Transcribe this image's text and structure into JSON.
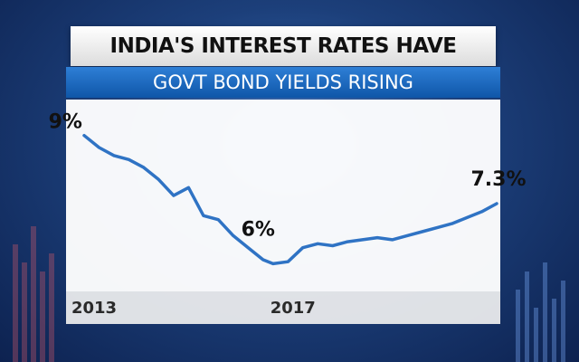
{
  "title": "INDIA'S INTEREST RATES HAVE STARTED GOING UP",
  "subtitle": "GOVT BOND YIELDS RISING",
  "colors": {
    "line": "#2f73c4",
    "subbar": "#1a66c0",
    "background": "#1c3f7a"
  },
  "chart_data": {
    "type": "line",
    "title": "INDIA'S INTEREST RATES HAVE STARTED GOING UP",
    "subtitle": "GOVT BOND YIELDS RISING",
    "xlabel": "",
    "ylabel": "",
    "xlim": [
      2013,
      2021.7
    ],
    "ylim": [
      5.2,
      9.4
    ],
    "x_ticks": [
      "2013",
      "2017"
    ],
    "grid": false,
    "legend": "none",
    "series": [
      {
        "x": [
          2013.2,
          2013.5,
          2013.8,
          2014.1,
          2014.4,
          2014.7,
          2015.0,
          2015.3,
          2015.6,
          2015.9,
          2016.2,
          2016.5,
          2016.8,
          2017.0,
          2017.3,
          2017.6,
          2017.9,
          2018.2,
          2018.5,
          2018.8,
          2019.1,
          2019.4,
          2019.7,
          2020.0,
          2020.3,
          2020.6,
          2020.9,
          2021.2,
          2021.5
        ],
        "y": [
          9.0,
          8.7,
          8.5,
          8.4,
          8.2,
          7.9,
          7.5,
          7.7,
          7.0,
          6.9,
          6.5,
          6.2,
          5.9,
          5.8,
          5.85,
          6.2,
          6.3,
          6.25,
          6.35,
          6.4,
          6.45,
          6.4,
          6.5,
          6.6,
          6.7,
          6.8,
          6.95,
          7.1,
          7.3
        ]
      }
    ],
    "annotations": [
      {
        "text": "9%",
        "x": 2013.2,
        "y": 9.0
      },
      {
        "text": "6%",
        "x": 2016.7,
        "y": 6.0
      },
      {
        "text": "7.3%",
        "x": 2021.5,
        "y": 7.3
      }
    ]
  }
}
